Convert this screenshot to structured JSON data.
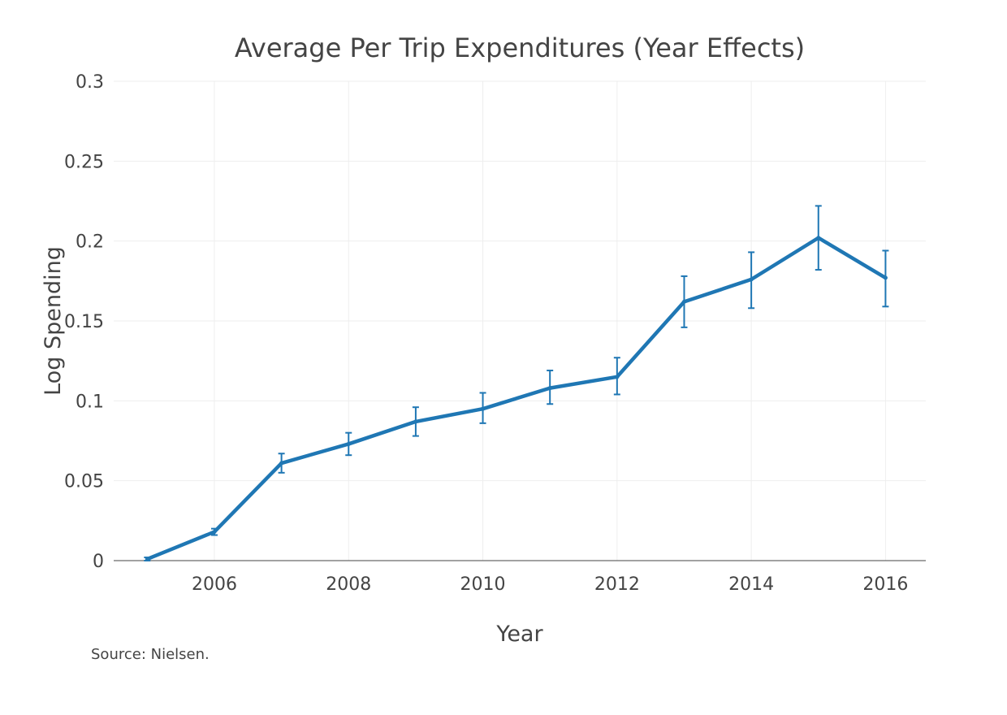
{
  "chart_data": {
    "type": "line",
    "title": "Average Per Trip Expenditures (Year Effects)",
    "xlabel": "Year",
    "ylabel": "Log Spending",
    "source_note": "Source: Nielsen.",
    "xlim": [
      2004.5,
      2016.6
    ],
    "ylim": [
      0,
      0.3
    ],
    "x_ticks": [
      {
        "value": 2006,
        "label": "2006"
      },
      {
        "value": 2008,
        "label": "2008"
      },
      {
        "value": 2010,
        "label": "2010"
      },
      {
        "value": 2012,
        "label": "2012"
      },
      {
        "value": 2014,
        "label": "2014"
      },
      {
        "value": 2016,
        "label": "2016"
      }
    ],
    "y_ticks": [
      {
        "value": 0,
        "label": "0"
      },
      {
        "value": 0.05,
        "label": "0.05"
      },
      {
        "value": 0.1,
        "label": "0.1"
      },
      {
        "value": 0.15,
        "label": "0.15"
      },
      {
        "value": 0.2,
        "label": "0.2"
      },
      {
        "value": 0.25,
        "label": "0.25"
      },
      {
        "value": 0.3,
        "label": "0.3"
      }
    ],
    "grid": true,
    "color": "#1f77b4",
    "series": [
      {
        "x": [
          2005,
          2006,
          2007,
          2008,
          2009,
          2010,
          2011,
          2012,
          2013,
          2014,
          2015,
          2016
        ],
        "y": [
          0.001,
          0.018,
          0.061,
          0.073,
          0.087,
          0.095,
          0.108,
          0.115,
          0.162,
          0.176,
          0.202,
          0.177
        ],
        "error_upper": [
          0.002,
          0.02,
          0.067,
          0.08,
          0.096,
          0.105,
          0.119,
          0.127,
          0.178,
          0.193,
          0.222,
          0.194
        ],
        "error_lower": [
          0.0,
          0.016,
          0.055,
          0.066,
          0.078,
          0.086,
          0.098,
          0.104,
          0.146,
          0.158,
          0.182,
          0.159
        ]
      }
    ]
  }
}
